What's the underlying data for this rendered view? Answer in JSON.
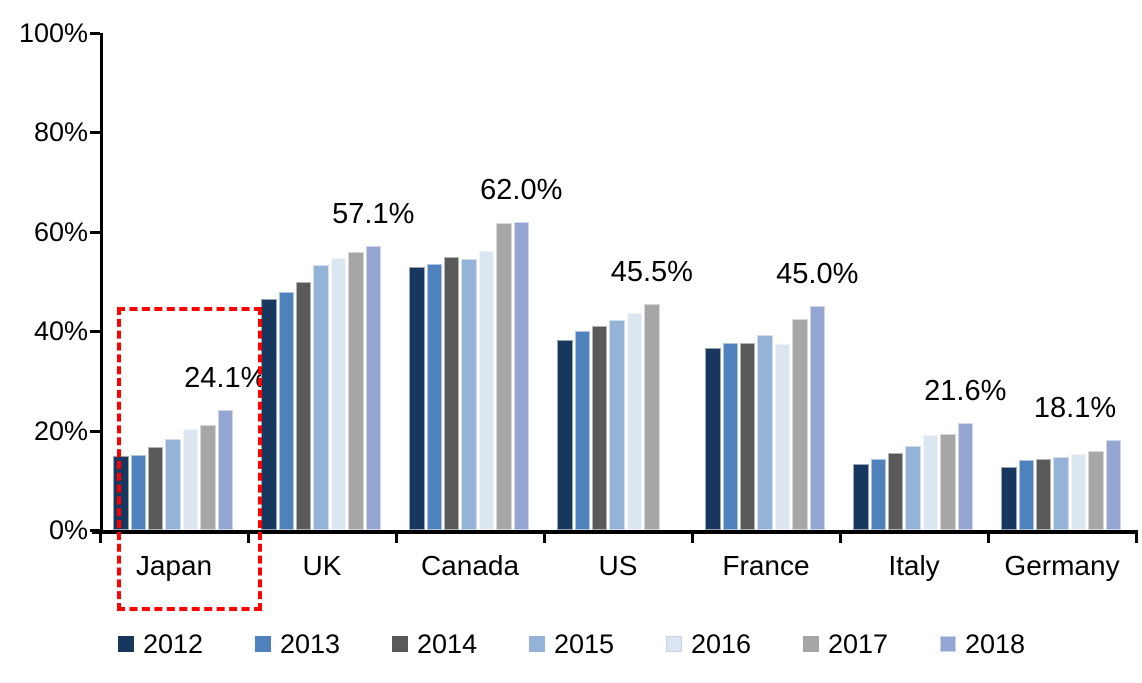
{
  "chart_data": {
    "type": "bar",
    "title": "",
    "xlabel": "",
    "ylabel": "",
    "categories": [
      "Japan",
      "UK",
      "Canada",
      "US",
      "France",
      "Italy",
      "Germany"
    ],
    "series": [
      {
        "name": "2012",
        "color": "#17375E",
        "values": [
          14.9,
          46.4,
          53.0,
          38.3,
          36.6,
          13.3,
          12.7
        ]
      },
      {
        "name": "2013",
        "color": "#4F81BD",
        "values": [
          15.1,
          47.9,
          53.5,
          40.0,
          37.7,
          14.2,
          14.0
        ]
      },
      {
        "name": "2014",
        "color": "#595959",
        "values": [
          16.7,
          50.0,
          55.0,
          41.1,
          37.7,
          15.5,
          14.3
        ]
      },
      {
        "name": "2015",
        "color": "#95B3D7",
        "values": [
          18.3,
          53.3,
          54.6,
          42.3,
          39.2,
          17.0,
          14.7
        ]
      },
      {
        "name": "2016",
        "color": "#DCE6F1",
        "values": [
          20.3,
          54.8,
          56.2,
          43.6,
          37.4,
          19.2,
          15.3
        ]
      },
      {
        "name": "2017",
        "color": "#A6A6A6",
        "values": [
          21.1,
          55.9,
          61.7,
          45.5,
          42.5,
          19.4,
          15.9
        ]
      },
      {
        "name": "2018",
        "color": "#95A6D2",
        "values": [
          24.1,
          57.1,
          62.0,
          null,
          45.0,
          21.6,
          18.1
        ]
      }
    ],
    "data_labels": [
      "24.1%",
      "57.1%",
      "62.0%",
      "45.5%",
      "45.0%",
      "21.6%",
      "18.1%"
    ],
    "y_ticks": [
      "0%",
      "20%",
      "40%",
      "60%",
      "80%",
      "100%"
    ],
    "ylim": [
      0,
      100
    ],
    "grid": "off",
    "legend_position": "bottom",
    "legend_labels": [
      "2012",
      "2013",
      "2014",
      "2015",
      "2016",
      "2017",
      "2018"
    ],
    "highlight": {
      "category": "Japan",
      "style": "dashed-box",
      "color": "#FF0000"
    }
  }
}
